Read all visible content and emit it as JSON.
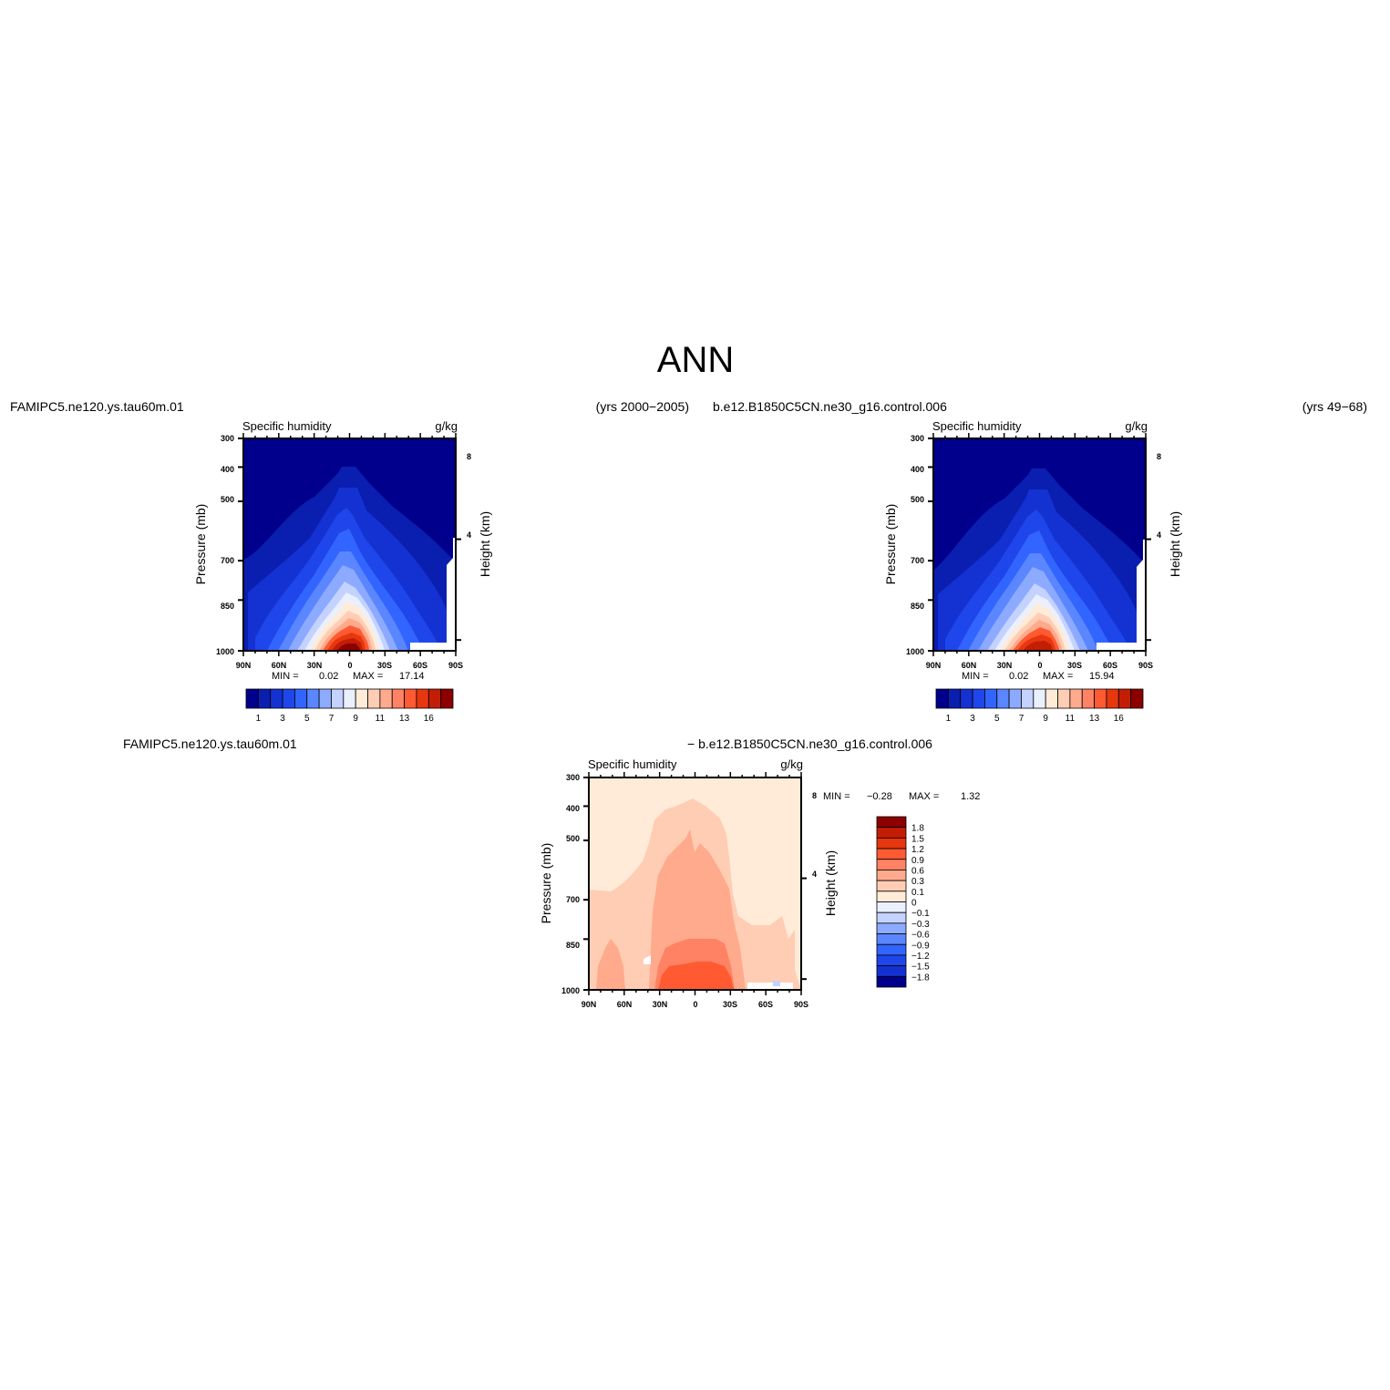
{
  "figure": {
    "title": "ANN"
  },
  "panels": [
    {
      "case_name": "FAMIPC5.ne120.ys.tau60m.01",
      "years": "(yrs 2000−2005)",
      "variable": "Specific humidity",
      "units": "g/kg",
      "ylabel": "Pressure (mb)",
      "ylabel_right": "Height (km)",
      "min_label": "MIN =",
      "min_value": "0.02",
      "max_label": "MAX =",
      "max_value": "17.14"
    },
    {
      "case_name": "b.e12.B1850C5CN.ne30_g16.control.006",
      "years": "(yrs 49−68)",
      "variable": "Specific humidity",
      "units": "g/kg",
      "ylabel": "Pressure (mb)",
      "ylabel_right": "Height (km)",
      "min_label": "MIN =",
      "min_value": "0.02",
      "max_label": "MAX =",
      "max_value": "15.94"
    },
    {
      "case_name": "FAMIPC5.ne120.ys.tau60m.01",
      "diff_case": "− b.e12.B1850C5CN.ne30_g16.control.006",
      "variable": "Specific humidity",
      "units": "g/kg",
      "ylabel": "Pressure (mb)",
      "ylabel_right": "Height (km)",
      "min_label": "MIN =",
      "min_value": "−0.28",
      "max_label": "MAX =",
      "max_value": "1.32"
    }
  ],
  "chart_data": [
    {
      "type": "heatmap",
      "title": "Specific humidity",
      "units": "g/kg",
      "x_ticks": [
        "90N",
        "60N",
        "30N",
        "0",
        "30S",
        "60S",
        "90S"
      ],
      "y_ticks": [
        300,
        400,
        500,
        700,
        850,
        1000
      ],
      "y_right_ticks": [
        8,
        4
      ],
      "ylim": [
        1000,
        300
      ],
      "colorbar": {
        "orientation": "horizontal",
        "labels": [
          "1",
          "3",
          "5",
          "7",
          "9",
          "11",
          "13",
          "16"
        ],
        "colors": [
          "#00008c",
          "#0a1fb0",
          "#1432d2",
          "#1e46eb",
          "#3264ff",
          "#5a86ff",
          "#8caaff",
          "#c3d2ff",
          "#ebf0ff",
          "#ffebd7",
          "#ffcdb4",
          "#ffaa8c",
          "#ff8264",
          "#ff5a32",
          "#e6370f",
          "#c31e05",
          "#8c0000"
        ]
      },
      "min": 0.02,
      "max": 17.14
    },
    {
      "type": "heatmap",
      "title": "Specific humidity",
      "units": "g/kg",
      "x_ticks": [
        "90N",
        "60N",
        "30N",
        "0",
        "30S",
        "60S",
        "90S"
      ],
      "y_ticks": [
        300,
        400,
        500,
        700,
        850,
        1000
      ],
      "y_right_ticks": [
        8,
        4
      ],
      "ylim": [
        1000,
        300
      ],
      "colorbar": {
        "orientation": "horizontal",
        "labels": [
          "1",
          "3",
          "5",
          "7",
          "9",
          "11",
          "13",
          "16"
        ],
        "colors": [
          "#00008c",
          "#0a1fb0",
          "#1432d2",
          "#1e46eb",
          "#3264ff",
          "#5a86ff",
          "#8caaff",
          "#c3d2ff",
          "#ebf0ff",
          "#ffebd7",
          "#ffcdb4",
          "#ffaa8c",
          "#ff8264",
          "#ff5a32",
          "#e6370f",
          "#c31e05",
          "#8c0000"
        ]
      },
      "min": 0.02,
      "max": 15.94
    },
    {
      "type": "heatmap",
      "title": "Specific humidity",
      "units": "g/kg",
      "x_ticks": [
        "90N",
        "60N",
        "30N",
        "0",
        "30S",
        "60S",
        "90S"
      ],
      "y_ticks": [
        300,
        400,
        500,
        700,
        850,
        1000
      ],
      "y_right_ticks": [
        8,
        4
      ],
      "ylim": [
        1000,
        300
      ],
      "colorbar": {
        "orientation": "vertical",
        "labels": [
          "1.8",
          "1.5",
          "1.2",
          "0.9",
          "0.6",
          "0.3",
          "0.1",
          "0",
          "−0.1",
          "−0.3",
          "−0.6",
          "−0.9",
          "−1.2",
          "−1.5",
          "−1.8"
        ],
        "colors": [
          "#8c0000",
          "#c31e05",
          "#e6370f",
          "#ff5a32",
          "#ff8264",
          "#ffaa8c",
          "#ffcdb4",
          "#ffebd7",
          "#ebf0ff",
          "#c3d2ff",
          "#8caaff",
          "#5a86ff",
          "#3264ff",
          "#1e46eb",
          "#1432d2",
          "#00008c"
        ]
      },
      "min": -0.28,
      "max": 1.32
    }
  ]
}
